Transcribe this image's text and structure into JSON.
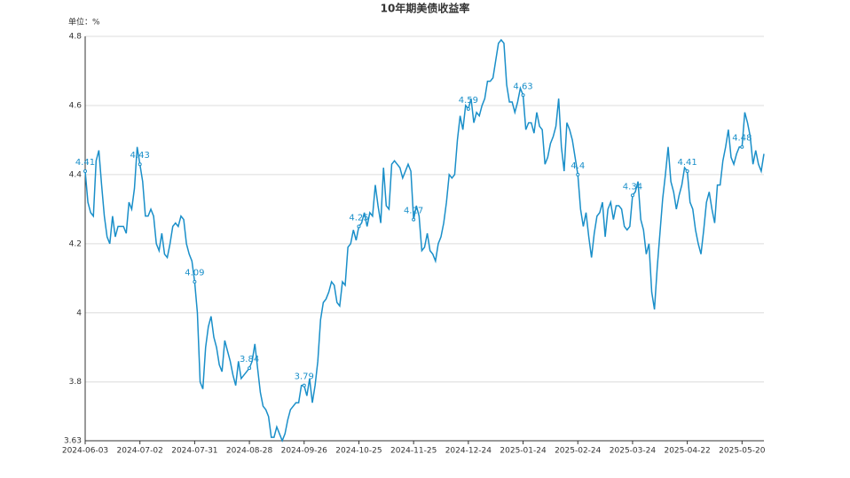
{
  "chart_data": {
    "type": "line",
    "title": "10年期美债收益率",
    "y_label": "单位：%",
    "categories": [
      "2024-06-03",
      null,
      null,
      null,
      null,
      null,
      null,
      null,
      null,
      null,
      null,
      null,
      null,
      null,
      null,
      null,
      null,
      null,
      null,
      null,
      "2024-07-02",
      null,
      null,
      null,
      null,
      null,
      null,
      null,
      null,
      null,
      null,
      null,
      null,
      null,
      null,
      null,
      null,
      null,
      null,
      null,
      "2024-07-31",
      null,
      null,
      null,
      null,
      null,
      null,
      null,
      null,
      null,
      null,
      null,
      null,
      null,
      null,
      null,
      null,
      null,
      null,
      null,
      "2024-08-28",
      null,
      null,
      null,
      null,
      null,
      null,
      null,
      null,
      null,
      null,
      null,
      null,
      null,
      null,
      null,
      null,
      null,
      null,
      null,
      "2024-09-26",
      null,
      null,
      null,
      null,
      null,
      null,
      null,
      null,
      null,
      null,
      null,
      null,
      null,
      null,
      null,
      null,
      null,
      null,
      null,
      "2024-10-25",
      null,
      null,
      null,
      null,
      null,
      null,
      null,
      null,
      null,
      null,
      null,
      null,
      null,
      null,
      null,
      null,
      null,
      null,
      null,
      "2024-11-25",
      null,
      null,
      null,
      null,
      null,
      null,
      null,
      null,
      null,
      null,
      null,
      null,
      null,
      null,
      null,
      null,
      null,
      null,
      null,
      "2024-12-24",
      null,
      null,
      null,
      null,
      null,
      null,
      null,
      null,
      null,
      null,
      null,
      null,
      null,
      null,
      null,
      null,
      null,
      null,
      null,
      "2025-01-24",
      null,
      null,
      null,
      null,
      null,
      null,
      null,
      null,
      null,
      null,
      null,
      null,
      null,
      null,
      null,
      null,
      null,
      null,
      null,
      "2025-02-24",
      null,
      null,
      null,
      null,
      null,
      null,
      null,
      null,
      null,
      null,
      null,
      null,
      null,
      null,
      null,
      null,
      null,
      null,
      null,
      "2025-03-24",
      null,
      null,
      null,
      null,
      null,
      null,
      null,
      null,
      null,
      null,
      null,
      null,
      null,
      null,
      null,
      null,
      null,
      null,
      null,
      "2025-04-22",
      null,
      null,
      null,
      null,
      null,
      null,
      null,
      null,
      null,
      null,
      null,
      null,
      null,
      null,
      null,
      null,
      null,
      null,
      null,
      "2025-05-20",
      null,
      null,
      null,
      null,
      null,
      null,
      null,
      null
    ],
    "values": [
      4.41,
      4.32,
      4.29,
      4.28,
      4.44,
      4.47,
      4.37,
      4.28,
      4.22,
      4.2,
      4.28,
      4.22,
      4.25,
      4.25,
      4.25,
      4.23,
      4.32,
      4.3,
      4.36,
      4.48,
      4.43,
      4.38,
      4.28,
      4.28,
      4.3,
      4.28,
      4.2,
      4.18,
      4.23,
      4.17,
      4.16,
      4.2,
      4.25,
      4.26,
      4.25,
      4.28,
      4.27,
      4.2,
      4.17,
      4.15,
      4.09,
      4.0,
      3.8,
      3.78,
      3.9,
      3.96,
      3.99,
      3.93,
      3.9,
      3.85,
      3.83,
      3.92,
      3.89,
      3.86,
      3.82,
      3.79,
      3.86,
      3.81,
      3.82,
      3.83,
      3.84,
      3.86,
      3.91,
      3.84,
      3.77,
      3.73,
      3.72,
      3.7,
      3.64,
      3.64,
      3.67,
      3.65,
      3.63,
      3.65,
      3.69,
      3.72,
      3.73,
      3.74,
      3.74,
      3.79,
      3.79,
      3.76,
      3.81,
      3.74,
      3.79,
      3.86,
      3.98,
      4.03,
      4.04,
      4.06,
      4.09,
      4.08,
      4.03,
      4.02,
      4.09,
      4.08,
      4.19,
      4.2,
      4.24,
      4.21,
      4.25,
      4.26,
      4.29,
      4.25,
      4.29,
      4.28,
      4.37,
      4.31,
      4.26,
      4.42,
      4.31,
      4.3,
      4.43,
      4.44,
      4.43,
      4.42,
      4.39,
      4.41,
      4.43,
      4.41,
      4.27,
      4.31,
      4.28,
      4.18,
      4.19,
      4.23,
      4.18,
      4.17,
      4.15,
      4.2,
      4.22,
      4.26,
      4.32,
      4.4,
      4.39,
      4.4,
      4.5,
      4.57,
      4.53,
      4.6,
      4.59,
      4.62,
      4.55,
      4.58,
      4.57,
      4.6,
      4.62,
      4.67,
      4.67,
      4.68,
      4.73,
      4.78,
      4.79,
      4.78,
      4.66,
      4.61,
      4.61,
      4.58,
      4.61,
      4.65,
      4.63,
      4.53,
      4.55,
      4.55,
      4.52,
      4.58,
      4.54,
      4.53,
      4.43,
      4.45,
      4.49,
      4.51,
      4.54,
      4.62,
      4.48,
      4.41,
      4.55,
      4.53,
      4.5,
      4.45,
      4.4,
      4.3,
      4.25,
      4.29,
      4.22,
      4.16,
      4.23,
      4.28,
      4.29,
      4.32,
      4.22,
      4.3,
      4.32,
      4.27,
      4.31,
      4.31,
      4.3,
      4.25,
      4.24,
      4.25,
      4.34,
      4.35,
      4.38,
      4.27,
      4.24,
      4.17,
      4.2,
      4.06,
      4.01,
      4.13,
      4.23,
      4.33,
      4.4,
      4.48,
      4.38,
      4.35,
      4.3,
      4.34,
      4.37,
      4.42,
      4.41,
      4.32,
      4.3,
      4.24,
      4.2,
      4.17,
      4.24,
      4.32,
      4.35,
      4.3,
      4.26,
      4.37,
      4.37,
      4.44,
      4.48,
      4.53,
      4.45,
      4.43,
      4.46,
      4.48,
      4.48,
      4.58,
      4.55,
      4.51,
      4.43,
      4.47,
      4.43,
      4.41,
      4.46
    ],
    "color": "#1a8fc9",
    "ylim": [
      3.63,
      4.8
    ],
    "yticks": [
      3.63,
      3.8,
      4,
      4.2,
      4.4,
      4.6,
      4.8
    ],
    "grid": true
  }
}
